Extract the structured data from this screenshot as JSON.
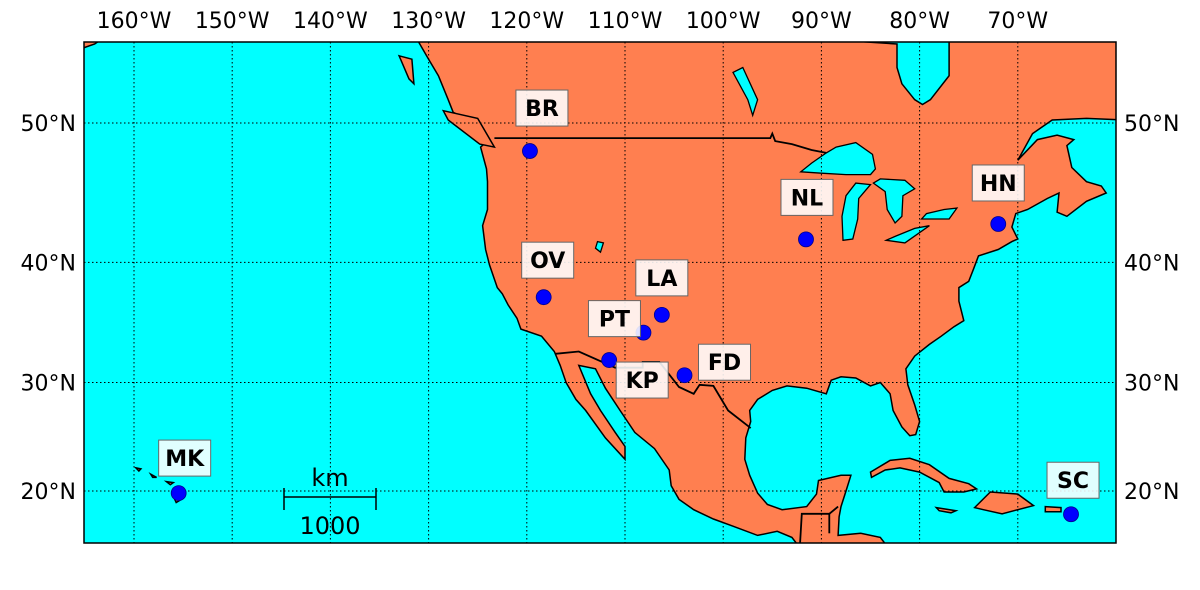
{
  "map": {
    "projection": "mercator",
    "lon_range": [
      -165,
      -60
    ],
    "lat_range": [
      15,
      55
    ],
    "colors": {
      "ocean": "#00ffff",
      "land": "#ff7f50",
      "station": "#0000ff",
      "coast": "#000000"
    },
    "gridlines": "dotted",
    "lon_ticks": [
      {
        "value": -160,
        "label": "160°W"
      },
      {
        "value": -150,
        "label": "150°W"
      },
      {
        "value": -140,
        "label": "140°W"
      },
      {
        "value": -130,
        "label": "130°W"
      },
      {
        "value": -120,
        "label": "120°W"
      },
      {
        "value": -110,
        "label": "110°W"
      },
      {
        "value": -100,
        "label": "100°W"
      },
      {
        "value": -90,
        "label": "90°W"
      },
      {
        "value": -80,
        "label": "80°W"
      },
      {
        "value": -70,
        "label": "70°W"
      }
    ],
    "lat_ticks": [
      {
        "value": 20,
        "label": "20°N"
      },
      {
        "value": 30,
        "label": "30°N"
      },
      {
        "value": 40,
        "label": "40°N"
      },
      {
        "value": 50,
        "label": "50°N"
      }
    ],
    "scale_bar": {
      "unit": "km",
      "length_label": "1000",
      "length_km": 1000
    },
    "stations": [
      {
        "code": "BR",
        "lon": -119.68,
        "lat": 48.13
      },
      {
        "code": "OV",
        "lon": -118.28,
        "lat": 37.23
      },
      {
        "code": "LA",
        "lon": -106.25,
        "lat": 35.78
      },
      {
        "code": "PT",
        "lon": -108.12,
        "lat": 34.3
      },
      {
        "code": "KP",
        "lon": -111.61,
        "lat": 31.96
      },
      {
        "code": "FD",
        "lon": -103.94,
        "lat": 30.64
      },
      {
        "code": "NL",
        "lon": -91.57,
        "lat": 41.77
      },
      {
        "code": "HN",
        "lon": -71.99,
        "lat": 42.93
      },
      {
        "code": "MK",
        "lon": -155.45,
        "lat": 19.8
      },
      {
        "code": "SC",
        "lon": -64.58,
        "lat": 17.76
      }
    ]
  }
}
